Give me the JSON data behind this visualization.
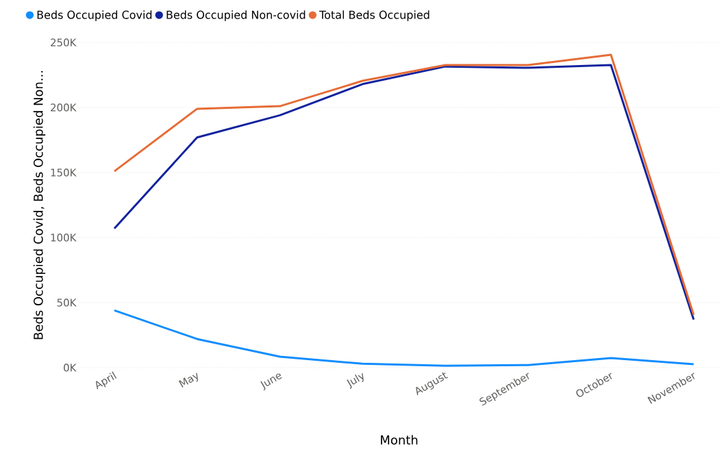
{
  "chart_data": {
    "type": "line",
    "xlabel": "Month",
    "ylabel": "Beds Occupied Covid, Beds Occupied Non...",
    "categories": [
      "April",
      "May",
      "June",
      "July",
      "August",
      "September",
      "October",
      "November"
    ],
    "series": [
      {
        "name": "Beds Occupied Covid",
        "color": "#118dff",
        "values": [
          44000,
          22000,
          8400,
          3000,
          1500,
          2000,
          7400,
          2600
        ]
      },
      {
        "name": "Beds Occupied Non-covid",
        "color": "#12239e",
        "values": [
          107000,
          177000,
          194000,
          218000,
          231500,
          230500,
          232600,
          37000
        ]
      },
      {
        "name": "Total Beds Occupied",
        "color": "#e66c37",
        "values": [
          151000,
          199000,
          201000,
          220500,
          232600,
          232600,
          240500,
          40500
        ]
      }
    ],
    "ylim": [
      0,
      250000
    ],
    "yticks": [
      {
        "value": 0,
        "label": "0K"
      },
      {
        "value": 50000,
        "label": "50K"
      },
      {
        "value": 100000,
        "label": "100K"
      },
      {
        "value": 150000,
        "label": "150K"
      },
      {
        "value": 200000,
        "label": "200K"
      },
      {
        "value": 250000,
        "label": "250K"
      }
    ],
    "grid": "y",
    "legend": "top left",
    "line_style": "solid"
  }
}
